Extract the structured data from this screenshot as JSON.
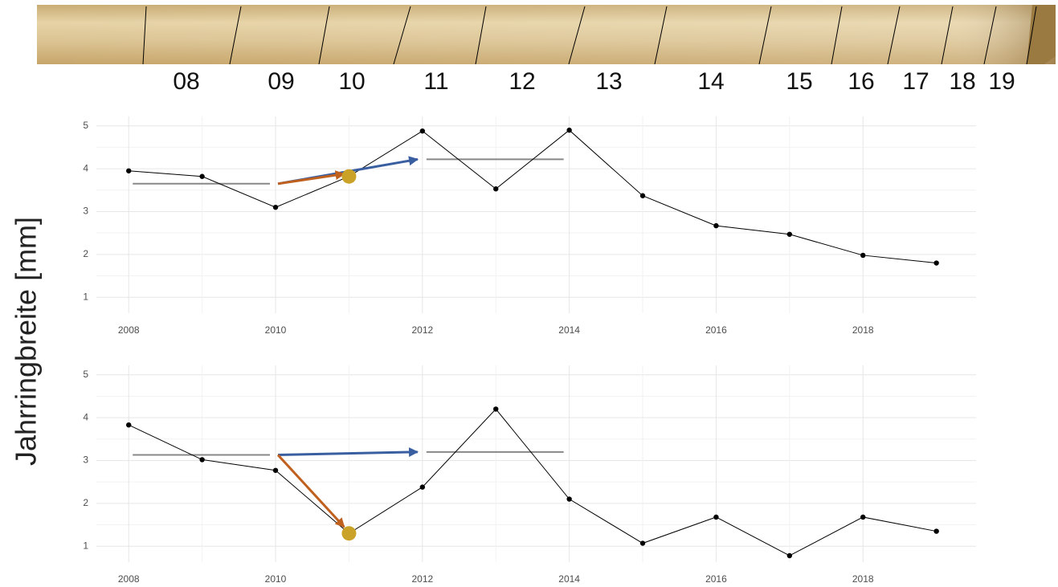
{
  "strip": {
    "labels": [
      "08",
      "09",
      "10",
      "11",
      "12",
      "13",
      "14",
      "15",
      "16",
      "17",
      "18",
      "19"
    ]
  },
  "y_label": "Jahrringbreite [mm]",
  "chart_data": [
    {
      "type": "line",
      "x": [
        2008,
        2009,
        2010,
        2011,
        2012,
        2013,
        2014,
        2015,
        2016,
        2017,
        2018,
        2019
      ],
      "series": [
        {
          "color": "#000000",
          "values": [
            3.95,
            3.82,
            3.1,
            3.82,
            4.88,
            3.53,
            4.9,
            3.37,
            2.67,
            2.47,
            1.98,
            1.8
          ]
        }
      ],
      "xlim": [
        2007.56,
        2019.54
      ],
      "ylim": [
        0.63,
        5.22
      ],
      "xticks": [
        2008,
        2010,
        2012,
        2014,
        2016,
        2018
      ],
      "yticks": [
        1,
        2,
        3,
        4,
        5
      ],
      "grid": true,
      "means": [
        {
          "x": [
            2008,
            2010
          ],
          "value": 3.65,
          "color": "#888888"
        },
        {
          "x": [
            2012,
            2014
          ],
          "value": 4.22,
          "color": "#888888"
        }
      ],
      "arrows": [
        {
          "from": [
            2010,
            3.65
          ],
          "to": [
            2012,
            4.22
          ],
          "color": "#3a5fa0"
        },
        {
          "from": [
            2010,
            3.65
          ],
          "to": [
            2011,
            3.88
          ],
          "color": "#c0601f"
        }
      ],
      "highlight": {
        "x": 2011,
        "value": 3.82,
        "color": "#c9a227"
      }
    },
    {
      "type": "line",
      "x": [
        2008,
        2009,
        2010,
        2011,
        2012,
        2013,
        2014,
        2015,
        2016,
        2017,
        2018,
        2019
      ],
      "series": [
        {
          "color": "#000000",
          "values": [
            3.83,
            3.02,
            2.77,
            1.3,
            2.38,
            4.2,
            2.1,
            1.07,
            1.68,
            0.78,
            1.68,
            1.35
          ]
        }
      ],
      "xlim": [
        2007.56,
        2019.54
      ],
      "ylim": [
        0.63,
        5.22
      ],
      "xticks": [
        2008,
        2010,
        2012,
        2014,
        2016,
        2018
      ],
      "yticks": [
        1,
        2,
        3,
        4,
        5
      ],
      "grid": true,
      "means": [
        {
          "x": [
            2008,
            2010
          ],
          "value": 3.13,
          "color": "#888888"
        },
        {
          "x": [
            2012,
            2014
          ],
          "value": 3.2,
          "color": "#888888"
        }
      ],
      "arrows": [
        {
          "from": [
            2010,
            3.13
          ],
          "to": [
            2012,
            3.2
          ],
          "color": "#3a5fa0"
        },
        {
          "from": [
            2010,
            3.13
          ],
          "to": [
            2011,
            1.45
          ],
          "color": "#c0601f"
        }
      ],
      "highlight": {
        "x": 2011,
        "value": 1.3,
        "color": "#c9a227"
      }
    }
  ]
}
